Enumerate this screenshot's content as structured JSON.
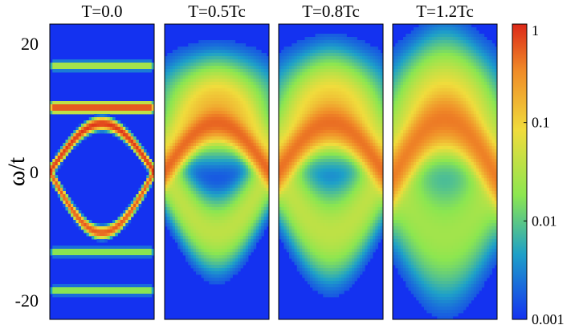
{
  "chart_data": {
    "type": "heatmap",
    "ylabel": "ω/t",
    "ylim": [
      -23,
      23
    ],
    "yticks": [
      {
        "value": 20,
        "label": "20"
      },
      {
        "value": 0,
        "label": "0"
      },
      {
        "value": -20,
        "label": "-20"
      }
    ],
    "colorbar": {
      "scale": "log",
      "range": [
        0.001,
        1
      ],
      "ticks": [
        {
          "value": 1,
          "label": "1"
        },
        {
          "value": 0.1,
          "label": "0.1"
        },
        {
          "value": 0.01,
          "label": "0.01"
        },
        {
          "value": 0.001,
          "label": "0.001"
        }
      ],
      "colormap": [
        "#1432f0",
        "#1ea0c8",
        "#8ce650",
        "#f0dc3c",
        "#f08c28",
        "#dc2818"
      ]
    },
    "panels": [
      {
        "title": "T=0.0",
        "broadening": 0.0,
        "bands": [
          {
            "kind": "dome",
            "peak": 7.5,
            "edge": 0,
            "intensity": 0.8
          },
          {
            "kind": "bowl",
            "bottom": -9.5,
            "edge": 0,
            "intensity": 0.5
          },
          {
            "kind": "flat",
            "level": 10,
            "intensity": 0.7
          },
          {
            "kind": "flat",
            "level": 16.5,
            "intensity": 0.03
          },
          {
            "kind": "flat",
            "level": -12.5,
            "intensity": 0.02
          },
          {
            "kind": "flat",
            "level": -18.5,
            "intensity": 0.02
          }
        ]
      },
      {
        "title": "T=0.5Tc",
        "broadening": 0.4,
        "bands": [
          {
            "kind": "dome",
            "peak": 7.5,
            "edge": 0,
            "intensity": 0.35
          },
          {
            "kind": "bowl",
            "bottom": -9.5,
            "edge": 0,
            "intensity": 0.03
          },
          {
            "kind": "flat",
            "level": 10,
            "intensity": 0.06
          }
        ]
      },
      {
        "title": "T=0.8Tc",
        "broadening": 0.55,
        "bands": [
          {
            "kind": "dome",
            "peak": 7.5,
            "edge": 0,
            "intensity": 0.3
          },
          {
            "kind": "bowl",
            "bottom": -9.5,
            "edge": 0,
            "intensity": 0.03
          },
          {
            "kind": "flat",
            "level": 10,
            "intensity": 0.05
          }
        ]
      },
      {
        "title": "T=1.2Tc",
        "broadening": 0.8,
        "bands": [
          {
            "kind": "dome",
            "peak": 8,
            "edge": -1,
            "intensity": 0.25
          },
          {
            "kind": "bowl",
            "bottom": -10,
            "edge": -1,
            "intensity": 0.02
          },
          {
            "kind": "flat",
            "level": 10,
            "intensity": 0.04
          }
        ]
      }
    ]
  }
}
